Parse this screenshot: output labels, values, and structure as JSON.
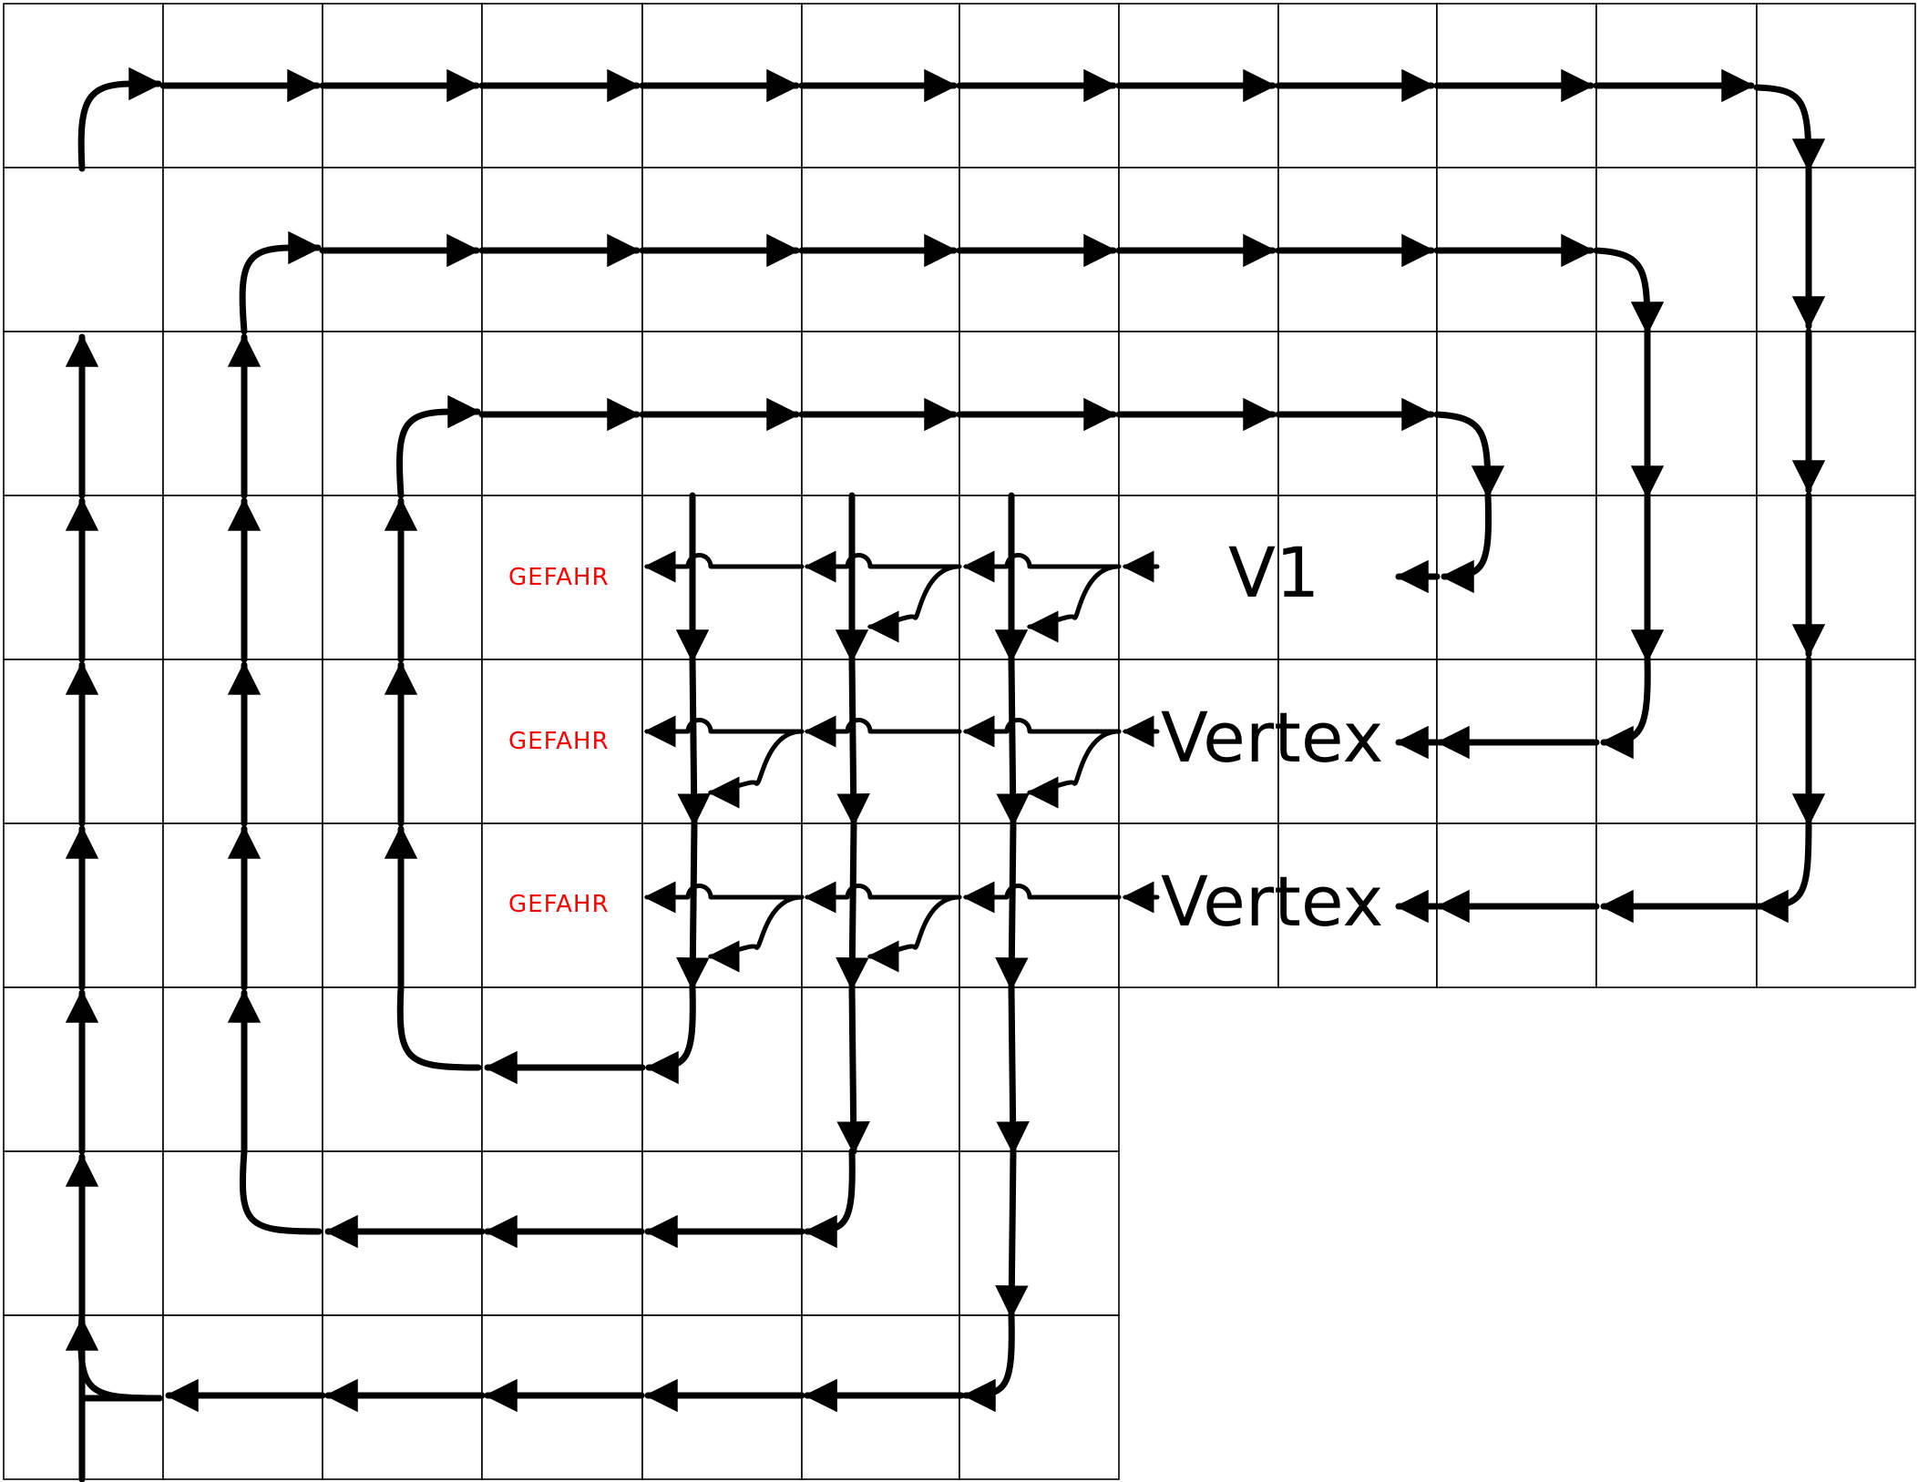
{
  "diagram": {
    "labels": {
      "v1": "V1",
      "vertex_1": "Vertex",
      "vertex_2": "Vertex",
      "gefahr_1": "GEFAHR",
      "gefahr_2": "GEFAHR",
      "gefahr_3": "GEFAHR"
    },
    "colors": {
      "line": "#000000",
      "grid": "#000000",
      "warning": "#ff0000",
      "background": "#ffffff"
    }
  }
}
